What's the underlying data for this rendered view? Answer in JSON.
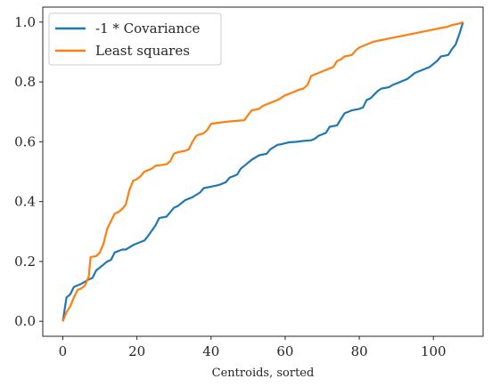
{
  "chart_data": {
    "type": "line",
    "title": "",
    "xlabel": "Centroids, sorted",
    "ylabel": "",
    "xlim": [
      -5.4,
      113.4
    ],
    "ylim": [
      -0.05,
      1.05
    ],
    "xticks": [
      0,
      20,
      40,
      60,
      80,
      100
    ],
    "yticks": [
      0.0,
      0.2,
      0.4,
      0.6,
      0.8,
      1.0
    ],
    "xtick_labels": [
      "0",
      "20",
      "40",
      "60",
      "80",
      "100"
    ],
    "ytick_labels": [
      "0.0",
      "0.2",
      "0.4",
      "0.6",
      "0.8",
      "1.0"
    ],
    "grid": false,
    "legend_position": "top-left",
    "series": [
      {
        "name": "-1 * Covariance",
        "color": "#1f77b4",
        "points": [
          [
            0,
            0.0
          ],
          [
            1,
            0.08
          ],
          [
            2,
            0.09
          ],
          [
            3,
            0.115
          ],
          [
            5,
            0.125
          ],
          [
            7,
            0.14
          ],
          [
            8,
            0.145
          ],
          [
            9,
            0.17
          ],
          [
            11,
            0.19
          ],
          [
            12,
            0.2
          ],
          [
            13,
            0.205
          ],
          [
            14,
            0.23
          ],
          [
            16,
            0.24
          ],
          [
            17,
            0.24
          ],
          [
            19,
            0.255
          ],
          [
            21,
            0.265
          ],
          [
            22,
            0.27
          ],
          [
            23,
            0.285
          ],
          [
            25,
            0.32
          ],
          [
            26,
            0.345
          ],
          [
            28,
            0.35
          ],
          [
            30,
            0.38
          ],
          [
            31,
            0.385
          ],
          [
            33,
            0.405
          ],
          [
            34,
            0.41
          ],
          [
            35,
            0.415
          ],
          [
            37,
            0.43
          ],
          [
            38,
            0.445
          ],
          [
            40,
            0.45
          ],
          [
            42,
            0.455
          ],
          [
            44,
            0.465
          ],
          [
            45,
            0.48
          ],
          [
            47,
            0.49
          ],
          [
            48,
            0.51
          ],
          [
            49,
            0.52
          ],
          [
            51,
            0.54
          ],
          [
            53,
            0.555
          ],
          [
            55,
            0.56
          ],
          [
            56,
            0.575
          ],
          [
            58,
            0.59
          ],
          [
            59,
            0.592
          ],
          [
            61,
            0.598
          ],
          [
            63,
            0.6
          ],
          [
            65,
            0.603
          ],
          [
            67,
            0.605
          ],
          [
            68,
            0.61
          ],
          [
            69,
            0.62
          ],
          [
            70,
            0.625
          ],
          [
            71,
            0.63
          ],
          [
            72,
            0.65
          ],
          [
            74,
            0.655
          ],
          [
            75,
            0.675
          ],
          [
            76,
            0.695
          ],
          [
            78,
            0.705
          ],
          [
            80,
            0.71
          ],
          [
            81,
            0.715
          ],
          [
            82,
            0.74
          ],
          [
            83,
            0.745
          ],
          [
            85,
            0.77
          ],
          [
            86,
            0.778
          ],
          [
            88,
            0.782
          ],
          [
            89,
            0.79
          ],
          [
            91,
            0.8
          ],
          [
            93,
            0.81
          ],
          [
            95,
            0.83
          ],
          [
            97,
            0.84
          ],
          [
            99,
            0.85
          ],
          [
            101,
            0.87
          ],
          [
            102,
            0.885
          ],
          [
            104,
            0.89
          ],
          [
            105,
            0.91
          ],
          [
            106,
            0.925
          ],
          [
            107,
            0.96
          ],
          [
            108,
            1.0
          ]
        ]
      },
      {
        "name": "Least squares",
        "color": "#ff7f0e",
        "points": [
          [
            0,
            0.0
          ],
          [
            1,
            0.03
          ],
          [
            2,
            0.05
          ],
          [
            3,
            0.08
          ],
          [
            4,
            0.105
          ],
          [
            5,
            0.11
          ],
          [
            6,
            0.12
          ],
          [
            7,
            0.15
          ],
          [
            7.5,
            0.215
          ],
          [
            9,
            0.218
          ],
          [
            10,
            0.23
          ],
          [
            11,
            0.26
          ],
          [
            12,
            0.31
          ],
          [
            14,
            0.36
          ],
          [
            15,
            0.365
          ],
          [
            16,
            0.375
          ],
          [
            17,
            0.39
          ],
          [
            18,
            0.44
          ],
          [
            19,
            0.47
          ],
          [
            20,
            0.475
          ],
          [
            21,
            0.485
          ],
          [
            22,
            0.5
          ],
          [
            23,
            0.505
          ],
          [
            24,
            0.51
          ],
          [
            25,
            0.52
          ],
          [
            27,
            0.523
          ],
          [
            28,
            0.525
          ],
          [
            29,
            0.535
          ],
          [
            30,
            0.56
          ],
          [
            31,
            0.565
          ],
          [
            33,
            0.57
          ],
          [
            34,
            0.575
          ],
          [
            35,
            0.6
          ],
          [
            36,
            0.62
          ],
          [
            37,
            0.625
          ],
          [
            38,
            0.628
          ],
          [
            39,
            0.64
          ],
          [
            40,
            0.66
          ],
          [
            41,
            0.662
          ],
          [
            43,
            0.665
          ],
          [
            45,
            0.668
          ],
          [
            47,
            0.67
          ],
          [
            49,
            0.672
          ],
          [
            50,
            0.69
          ],
          [
            51,
            0.705
          ],
          [
            53,
            0.71
          ],
          [
            54,
            0.72
          ],
          [
            56,
            0.73
          ],
          [
            58,
            0.74
          ],
          [
            60,
            0.755
          ],
          [
            62,
            0.765
          ],
          [
            63,
            0.77
          ],
          [
            64,
            0.775
          ],
          [
            65,
            0.778
          ],
          [
            66,
            0.79
          ],
          [
            67,
            0.82
          ],
          [
            69,
            0.83
          ],
          [
            71,
            0.84
          ],
          [
            73,
            0.85
          ],
          [
            74,
            0.87
          ],
          [
            75,
            0.875
          ],
          [
            76,
            0.885
          ],
          [
            78,
            0.89
          ],
          [
            79,
            0.905
          ],
          [
            80,
            0.915
          ],
          [
            82,
            0.925
          ],
          [
            84,
            0.935
          ],
          [
            86,
            0.94
          ],
          [
            88,
            0.945
          ],
          [
            90,
            0.95
          ],
          [
            92,
            0.955
          ],
          [
            94,
            0.96
          ],
          [
            96,
            0.965
          ],
          [
            98,
            0.97
          ],
          [
            100,
            0.975
          ],
          [
            102,
            0.98
          ],
          [
            104,
            0.985
          ],
          [
            105,
            0.99
          ],
          [
            107,
            0.995
          ],
          [
            108,
            1.0
          ]
        ]
      }
    ]
  }
}
